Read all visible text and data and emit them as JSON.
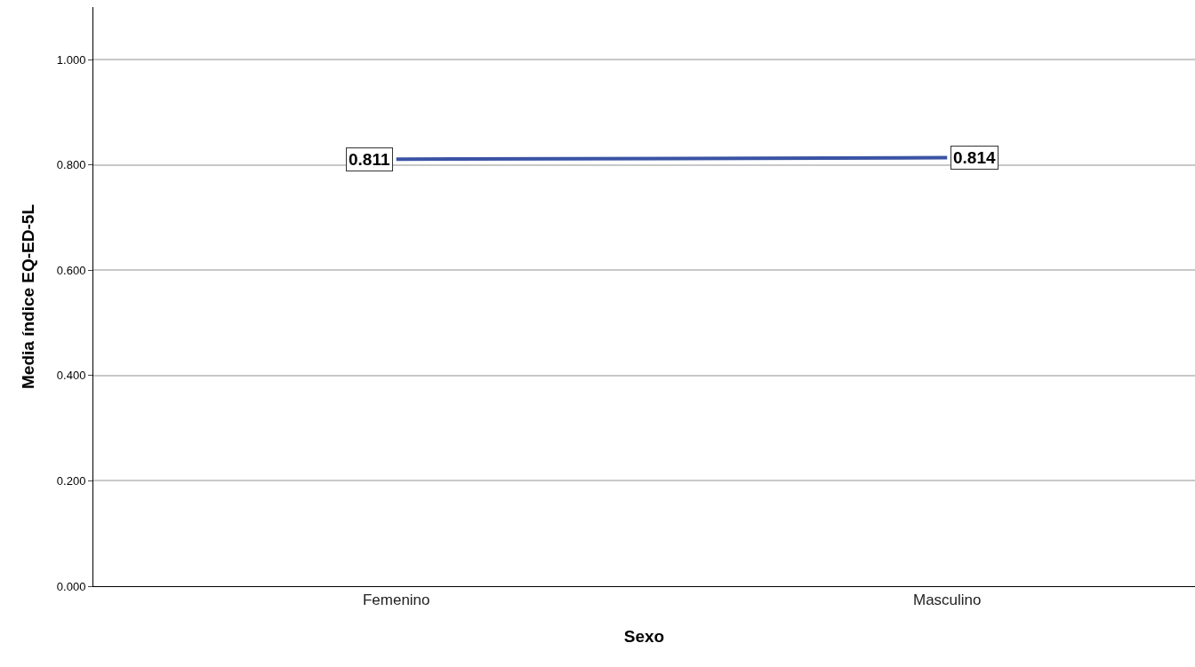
{
  "chart_data": {
    "type": "line",
    "xlabel": "Sexo",
    "ylabel": "Media índice EQ-ED-5L",
    "categories": [
      "Femenino",
      "Masculino"
    ],
    "series": [
      {
        "color": "#3a53a4",
        "values": [
          0.811,
          0.814
        ]
      }
    ],
    "ylim": [
      0,
      1.1
    ],
    "yticks": [
      {
        "value": 0,
        "label": "0.000"
      },
      {
        "value": 0.2,
        "label": "0.200"
      },
      {
        "value": 0.4,
        "label": "0.400"
      },
      {
        "value": 0.6,
        "label": "0.600"
      },
      {
        "value": 0.8,
        "label": "0.800"
      },
      {
        "value": 1,
        "label": "1.000"
      }
    ],
    "grid": "y",
    "data_labels": true,
    "marker": "none",
    "line_style": "solid"
  }
}
